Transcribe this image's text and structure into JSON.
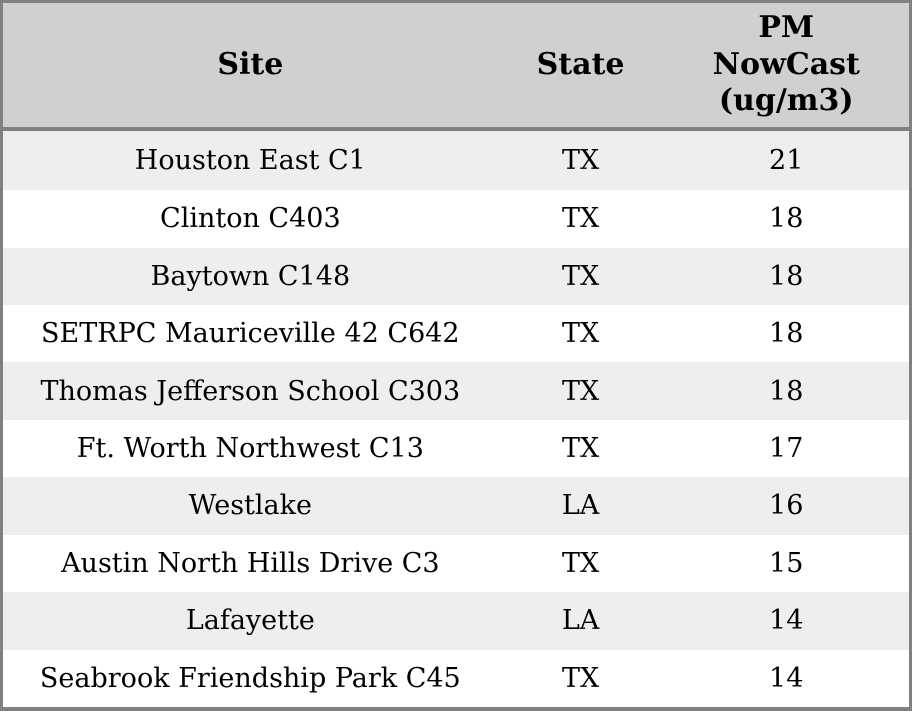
{
  "table": {
    "columns": [
      {
        "key": "site",
        "label": "Site"
      },
      {
        "key": "state",
        "label": "State"
      },
      {
        "key": "pm",
        "label": "PM\nNowCast\n(ug/m3)"
      }
    ],
    "rows": [
      {
        "site": "Houston East C1",
        "state": "TX",
        "pm": "21"
      },
      {
        "site": "Clinton C403",
        "state": "TX",
        "pm": "18"
      },
      {
        "site": "Baytown C148",
        "state": "TX",
        "pm": "18"
      },
      {
        "site": "SETRPC Mauriceville 42 C642",
        "state": "TX",
        "pm": "18"
      },
      {
        "site": "Thomas Jefferson School C303",
        "state": "TX",
        "pm": "18"
      },
      {
        "site": "Ft. Worth Northwest C13",
        "state": "TX",
        "pm": "17"
      },
      {
        "site": "Westlake",
        "state": "LA",
        "pm": "16"
      },
      {
        "site": "Austin North Hills Drive C3",
        "state": "TX",
        "pm": "15"
      },
      {
        "site": "Lafayette",
        "state": "LA",
        "pm": "14"
      },
      {
        "site": "Seabrook Friendship Park C45",
        "state": "TX",
        "pm": "14"
      }
    ]
  },
  "colors": {
    "header_background": "#d0d0d0",
    "row_stripe": "#eeeeee",
    "row_plain": "#ffffff",
    "border": "#808080",
    "text": "#000000"
  },
  "chart_data": {
    "type": "table",
    "columns": [
      "Site",
      "State",
      "PM NowCast (ug/m3)"
    ],
    "rows": [
      [
        "Houston East C1",
        "TX",
        21
      ],
      [
        "Clinton C403",
        "TX",
        18
      ],
      [
        "Baytown C148",
        "TX",
        18
      ],
      [
        "SETRPC Mauriceville 42 C642",
        "TX",
        18
      ],
      [
        "Thomas Jefferson School C303",
        "TX",
        18
      ],
      [
        "Ft. Worth Northwest C13",
        "TX",
        17
      ],
      [
        "Westlake",
        "LA",
        16
      ],
      [
        "Austin North Hills Drive C3",
        "TX",
        15
      ],
      [
        "Lafayette",
        "LA",
        14
      ],
      [
        "Seabrook Friendship Park C45",
        "TX",
        14
      ]
    ],
    "notes": "Rows sorted descending by PM NowCast value; alternating row shading; no title or axes shown"
  }
}
